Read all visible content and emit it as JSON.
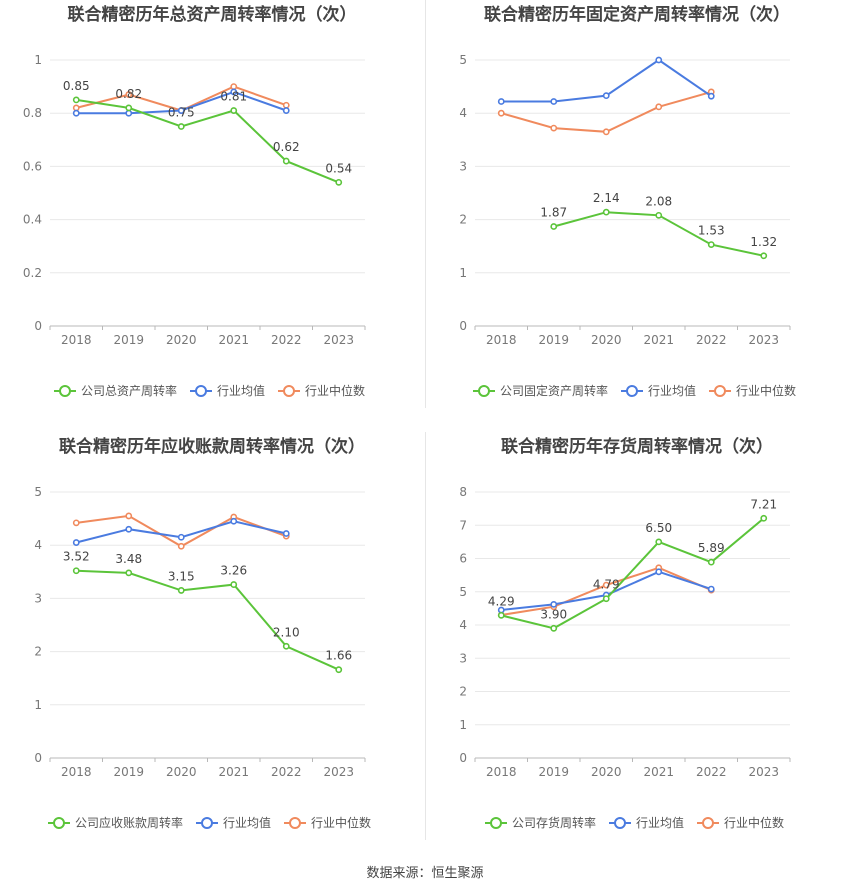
{
  "source_text": "数据来源：恒生聚源",
  "legend_common": {
    "avg": "行业均值",
    "median": "行业中位数"
  },
  "colors": {
    "company": "#5bc43a",
    "avg": "#4a7be0",
    "median": "#f08a5d",
    "grid": "#e8e8e8",
    "axis": "#b8b8b8"
  },
  "chart_data": [
    {
      "type": "line",
      "title": "联合精密历年总资产周转率情况（次）",
      "categories": [
        "2018",
        "2019",
        "2020",
        "2021",
        "2022",
        "2023"
      ],
      "ylim": [
        0,
        1
      ],
      "yticks": [
        "0",
        "0.2",
        "0.4",
        "0.6",
        "0.8",
        "1"
      ],
      "series": [
        {
          "name": "公司总资产周转率",
          "key": "company",
          "values": [
            0.85,
            0.82,
            0.75,
            0.81,
            0.62,
            0.54
          ],
          "labels": [
            "0.85",
            "0.82",
            "0.75",
            "0.81",
            "0.62",
            "0.54"
          ]
        },
        {
          "name": "行业均值",
          "key": "avg",
          "values": [
            0.8,
            0.8,
            0.81,
            0.88,
            0.81,
            null
          ]
        },
        {
          "name": "行业中位数",
          "key": "median",
          "values": [
            0.82,
            0.87,
            0.81,
            0.9,
            0.83,
            null
          ]
        }
      ],
      "legend": "bottom",
      "grid": true
    },
    {
      "type": "line",
      "title": "联合精密历年固定资产周转率情况（次）",
      "categories": [
        "2018",
        "2019",
        "2020",
        "2021",
        "2022",
        "2023"
      ],
      "ylim": [
        0,
        5
      ],
      "yticks": [
        "0",
        "1",
        "2",
        "3",
        "4",
        "5"
      ],
      "series": [
        {
          "name": "公司固定资产周转率",
          "key": "company",
          "values": [
            null,
            1.87,
            2.14,
            2.08,
            1.53,
            1.32
          ],
          "labels": [
            null,
            "1.87",
            "2.14",
            "2.08",
            "1.53",
            "1.32"
          ]
        },
        {
          "name": "行业均值",
          "key": "avg",
          "values": [
            4.22,
            4.22,
            4.33,
            5.0,
            4.32,
            null
          ]
        },
        {
          "name": "行业中位数",
          "key": "median",
          "values": [
            4.0,
            3.72,
            3.65,
            4.12,
            4.4,
            null
          ]
        }
      ],
      "legend": "bottom",
      "grid": true
    },
    {
      "type": "line",
      "title": "联合精密历年应收账款周转率情况（次）",
      "categories": [
        "2018",
        "2019",
        "2020",
        "2021",
        "2022",
        "2023"
      ],
      "ylim": [
        0,
        5
      ],
      "yticks": [
        "0",
        "1",
        "2",
        "3",
        "4",
        "5"
      ],
      "series": [
        {
          "name": "公司应收账款周转率",
          "key": "company",
          "values": [
            3.52,
            3.48,
            3.15,
            3.26,
            2.1,
            1.66
          ],
          "labels": [
            "3.52",
            "3.48",
            "3.15",
            "3.26",
            "2.10",
            "1.66"
          ]
        },
        {
          "name": "行业均值",
          "key": "avg",
          "values": [
            4.05,
            4.3,
            4.15,
            4.45,
            4.22,
            null
          ]
        },
        {
          "name": "行业中位数",
          "key": "median",
          "values": [
            4.42,
            4.55,
            3.98,
            4.53,
            4.17,
            null
          ]
        }
      ],
      "legend": "bottom",
      "grid": true
    },
    {
      "type": "line",
      "title": "联合精密历年存货周转率情况（次）",
      "categories": [
        "2018",
        "2019",
        "2020",
        "2021",
        "2022",
        "2023"
      ],
      "ylim": [
        0,
        8
      ],
      "yticks": [
        "0",
        "1",
        "2",
        "3",
        "4",
        "5",
        "6",
        "7",
        "8"
      ],
      "series": [
        {
          "name": "公司存货周转率",
          "key": "company",
          "values": [
            4.29,
            3.9,
            4.79,
            6.5,
            5.89,
            7.21
          ],
          "labels": [
            "4.29",
            "3.90",
            "4.79",
            "6.50",
            "5.89",
            "7.21"
          ]
        },
        {
          "name": "行业均值",
          "key": "avg",
          "values": [
            4.45,
            4.62,
            4.9,
            5.6,
            5.08,
            null
          ]
        },
        {
          "name": "行业中位数",
          "key": "median",
          "values": [
            4.3,
            4.55,
            5.2,
            5.72,
            5.05,
            null
          ]
        }
      ],
      "legend": "bottom",
      "grid": true
    }
  ]
}
